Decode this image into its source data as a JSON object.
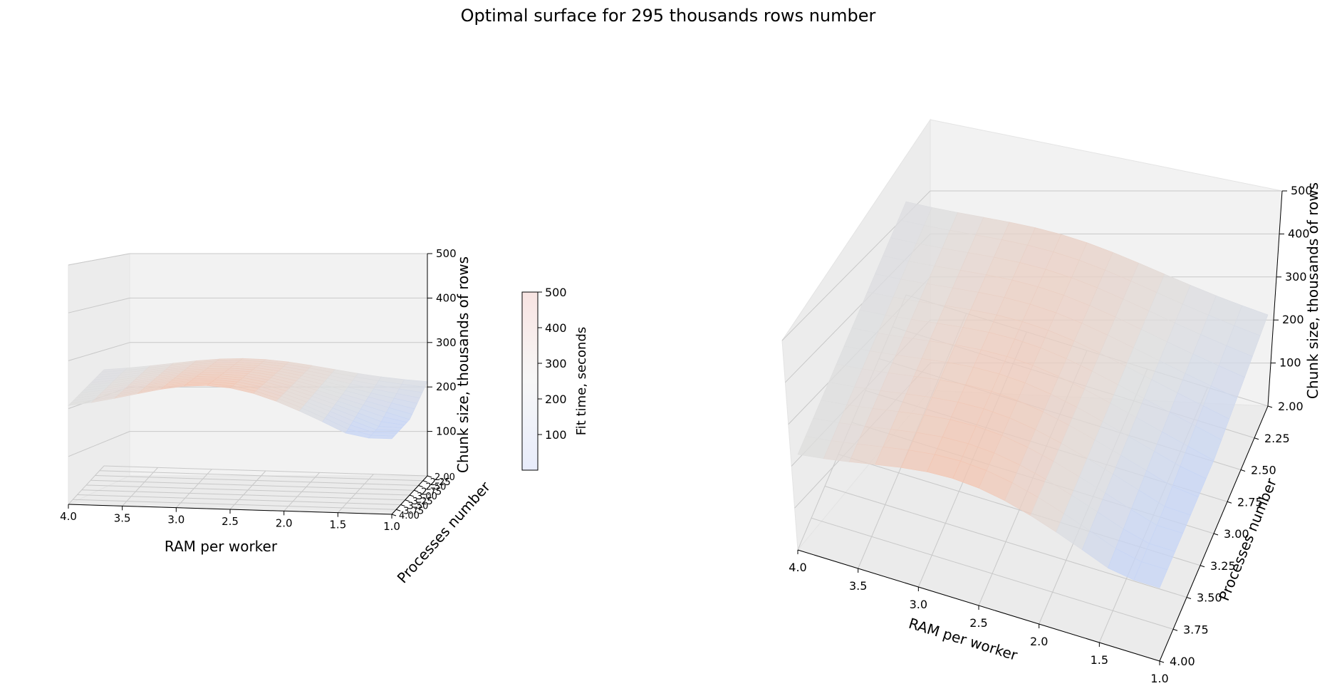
{
  "figure": {
    "title": "Optimal surface for 295 thousands rows number"
  },
  "chart_data": [
    {
      "type": "surface3d",
      "view": "low-elevation",
      "xlabel": "RAM per worker",
      "ylabel": "Processes number",
      "zlabel": "Chunk size, thousands of rows",
      "x_ticks": [
        "4.0",
        "3.5",
        "3.0",
        "2.5",
        "2.0",
        "1.5",
        "1.0"
      ],
      "y_ticks": [
        "2.00",
        "2.25",
        "2.50",
        "2.75",
        "3.00",
        "3.25",
        "3.50",
        "3.75",
        "4.00"
      ],
      "z_ticks": [
        "100",
        "200",
        "300",
        "400",
        "500"
      ],
      "xlim": [
        1.0,
        4.0
      ],
      "ylim": [
        2.0,
        4.0
      ],
      "zlim": [
        0,
        500
      ],
      "colormap": "coolwarm",
      "surface_summary": {
        "z_min": 170,
        "z_max": 280
      }
    },
    {
      "type": "surface3d",
      "view": "elevated",
      "xlabel": "RAM per worker",
      "ylabel": "Processes number",
      "zlabel": "Chunk size, thousands of rows",
      "x_ticks": [
        "4.0",
        "3.5",
        "3.0",
        "2.5",
        "2.0",
        "1.5",
        "1.0"
      ],
      "y_ticks": [
        "2.00",
        "2.25",
        "2.50",
        "2.75",
        "3.00",
        "3.25",
        "3.50",
        "3.75",
        "4.00"
      ],
      "z_ticks": [
        "100",
        "200",
        "300",
        "400",
        "500"
      ],
      "xlim": [
        1.0,
        4.0
      ],
      "ylim": [
        2.0,
        4.0
      ],
      "zlim": [
        0,
        500
      ],
      "colormap": "coolwarm",
      "surface_summary": {
        "z_min": 170,
        "z_max": 280
      }
    }
  ],
  "colorbar": {
    "label": "Fit time, seconds",
    "ticks": [
      "100",
      "200",
      "300",
      "400",
      "500"
    ],
    "range": [
      0,
      500
    ],
    "colors": {
      "low": "#e8ecfb",
      "mid": "#f7f7f7",
      "high": "#f8e4e2"
    }
  },
  "colors": {
    "pane": "#f2f2f2",
    "pane_edge": "#e4e4e4",
    "grid": "#c8c8c8",
    "cool": "#c7d5f5",
    "warm": "#f4c3ae",
    "neutral": "#dcdcdc"
  }
}
